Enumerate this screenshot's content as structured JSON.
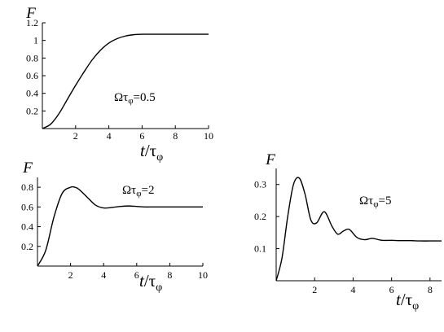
{
  "chart_data": [
    {
      "type": "line",
      "ylabel": "F",
      "xlabel": "t/τφ",
      "xlabel_italic": "t",
      "xlabel_rest": "/τ",
      "xlabel_sub": "φ",
      "annotation": "Ωτφ=0.5",
      "annotation_main": "Ωτ",
      "annotation_sub": "φ",
      "annotation_tail": "=0.5",
      "xlim": [
        0,
        10
      ],
      "ylim": [
        0,
        1.2
      ],
      "x_ticks": [
        2,
        4,
        6,
        8,
        10
      ],
      "x_tick_labels": [
        "2",
        "4",
        "6",
        "8",
        "10"
      ],
      "y_ticks": [
        0.2,
        0.4,
        0.6,
        0.8,
        1,
        1.2
      ],
      "y_tick_labels": [
        "0.2",
        "0.4",
        "0.6",
        "0.8",
        "1",
        "1.2"
      ],
      "grid": false,
      "x": [
        0,
        0.5,
        1,
        1.5,
        2,
        2.5,
        3,
        3.5,
        4,
        4.5,
        5,
        5.5,
        6,
        6.5,
        7,
        8,
        9,
        10
      ],
      "y": [
        0,
        0.05,
        0.17,
        0.33,
        0.49,
        0.64,
        0.78,
        0.89,
        0.97,
        1.02,
        1.05,
        1.065,
        1.07,
        1.07,
        1.07,
        1.07,
        1.07,
        1.07
      ]
    },
    {
      "type": "line",
      "ylabel": "F",
      "xlabel": "t/τφ",
      "xlabel_italic": "t",
      "xlabel_rest": "/τ",
      "xlabel_sub": "φ",
      "annotation": "Ωτφ=2",
      "annotation_main": "Ωτ",
      "annotation_sub": "φ",
      "annotation_tail": "=2",
      "xlim": [
        0,
        10
      ],
      "ylim": [
        0,
        0.9
      ],
      "x_ticks": [
        2,
        4,
        6,
        8,
        10
      ],
      "x_tick_labels": [
        "2",
        "4",
        "6",
        "8",
        "10"
      ],
      "y_ticks": [
        0.2,
        0.4,
        0.6,
        0.8
      ],
      "y_tick_labels": [
        "0.2",
        "0.4",
        "0.6",
        "0.8"
      ],
      "grid": false,
      "x": [
        0,
        0.5,
        1,
        1.5,
        2,
        2.25,
        2.5,
        3,
        3.5,
        4,
        4.5,
        5,
        5.5,
        6,
        6.5,
        7,
        8,
        9,
        10
      ],
      "y": [
        0,
        0.16,
        0.5,
        0.74,
        0.8,
        0.8,
        0.78,
        0.7,
        0.62,
        0.59,
        0.595,
        0.605,
        0.61,
        0.605,
        0.6,
        0.6,
        0.6,
        0.6,
        0.6
      ]
    },
    {
      "type": "line",
      "ylabel": "F",
      "xlabel": "t/τφ",
      "xlabel_italic": "t",
      "xlabel_rest": "/τ",
      "xlabel_sub": "φ",
      "annotation": "Ωτφ=5",
      "annotation_main": "Ωτ",
      "annotation_sub": "φ",
      "annotation_tail": "=5",
      "xlim": [
        0,
        8.6
      ],
      "ylim": [
        0,
        0.35
      ],
      "x_ticks": [
        2,
        4,
        6,
        8
      ],
      "x_tick_labels": [
        "2",
        "4",
        "6",
        "8"
      ],
      "y_ticks": [
        0.1,
        0.2,
        0.3
      ],
      "y_tick_labels": [
        "0.1",
        "0.2",
        "0.3"
      ],
      "grid": false,
      "x": [
        0,
        0.3,
        0.6,
        0.9,
        1.2,
        1.5,
        1.8,
        2.1,
        2.5,
        2.9,
        3.2,
        3.5,
        3.8,
        4.2,
        4.6,
        5,
        5.5,
        6,
        6.5,
        7,
        7.5,
        8,
        8.6
      ],
      "y": [
        0,
        0.07,
        0.2,
        0.3,
        0.32,
        0.27,
        0.19,
        0.18,
        0.215,
        0.17,
        0.145,
        0.155,
        0.16,
        0.135,
        0.128,
        0.132,
        0.126,
        0.126,
        0.125,
        0.125,
        0.124,
        0.124,
        0.124
      ]
    }
  ]
}
